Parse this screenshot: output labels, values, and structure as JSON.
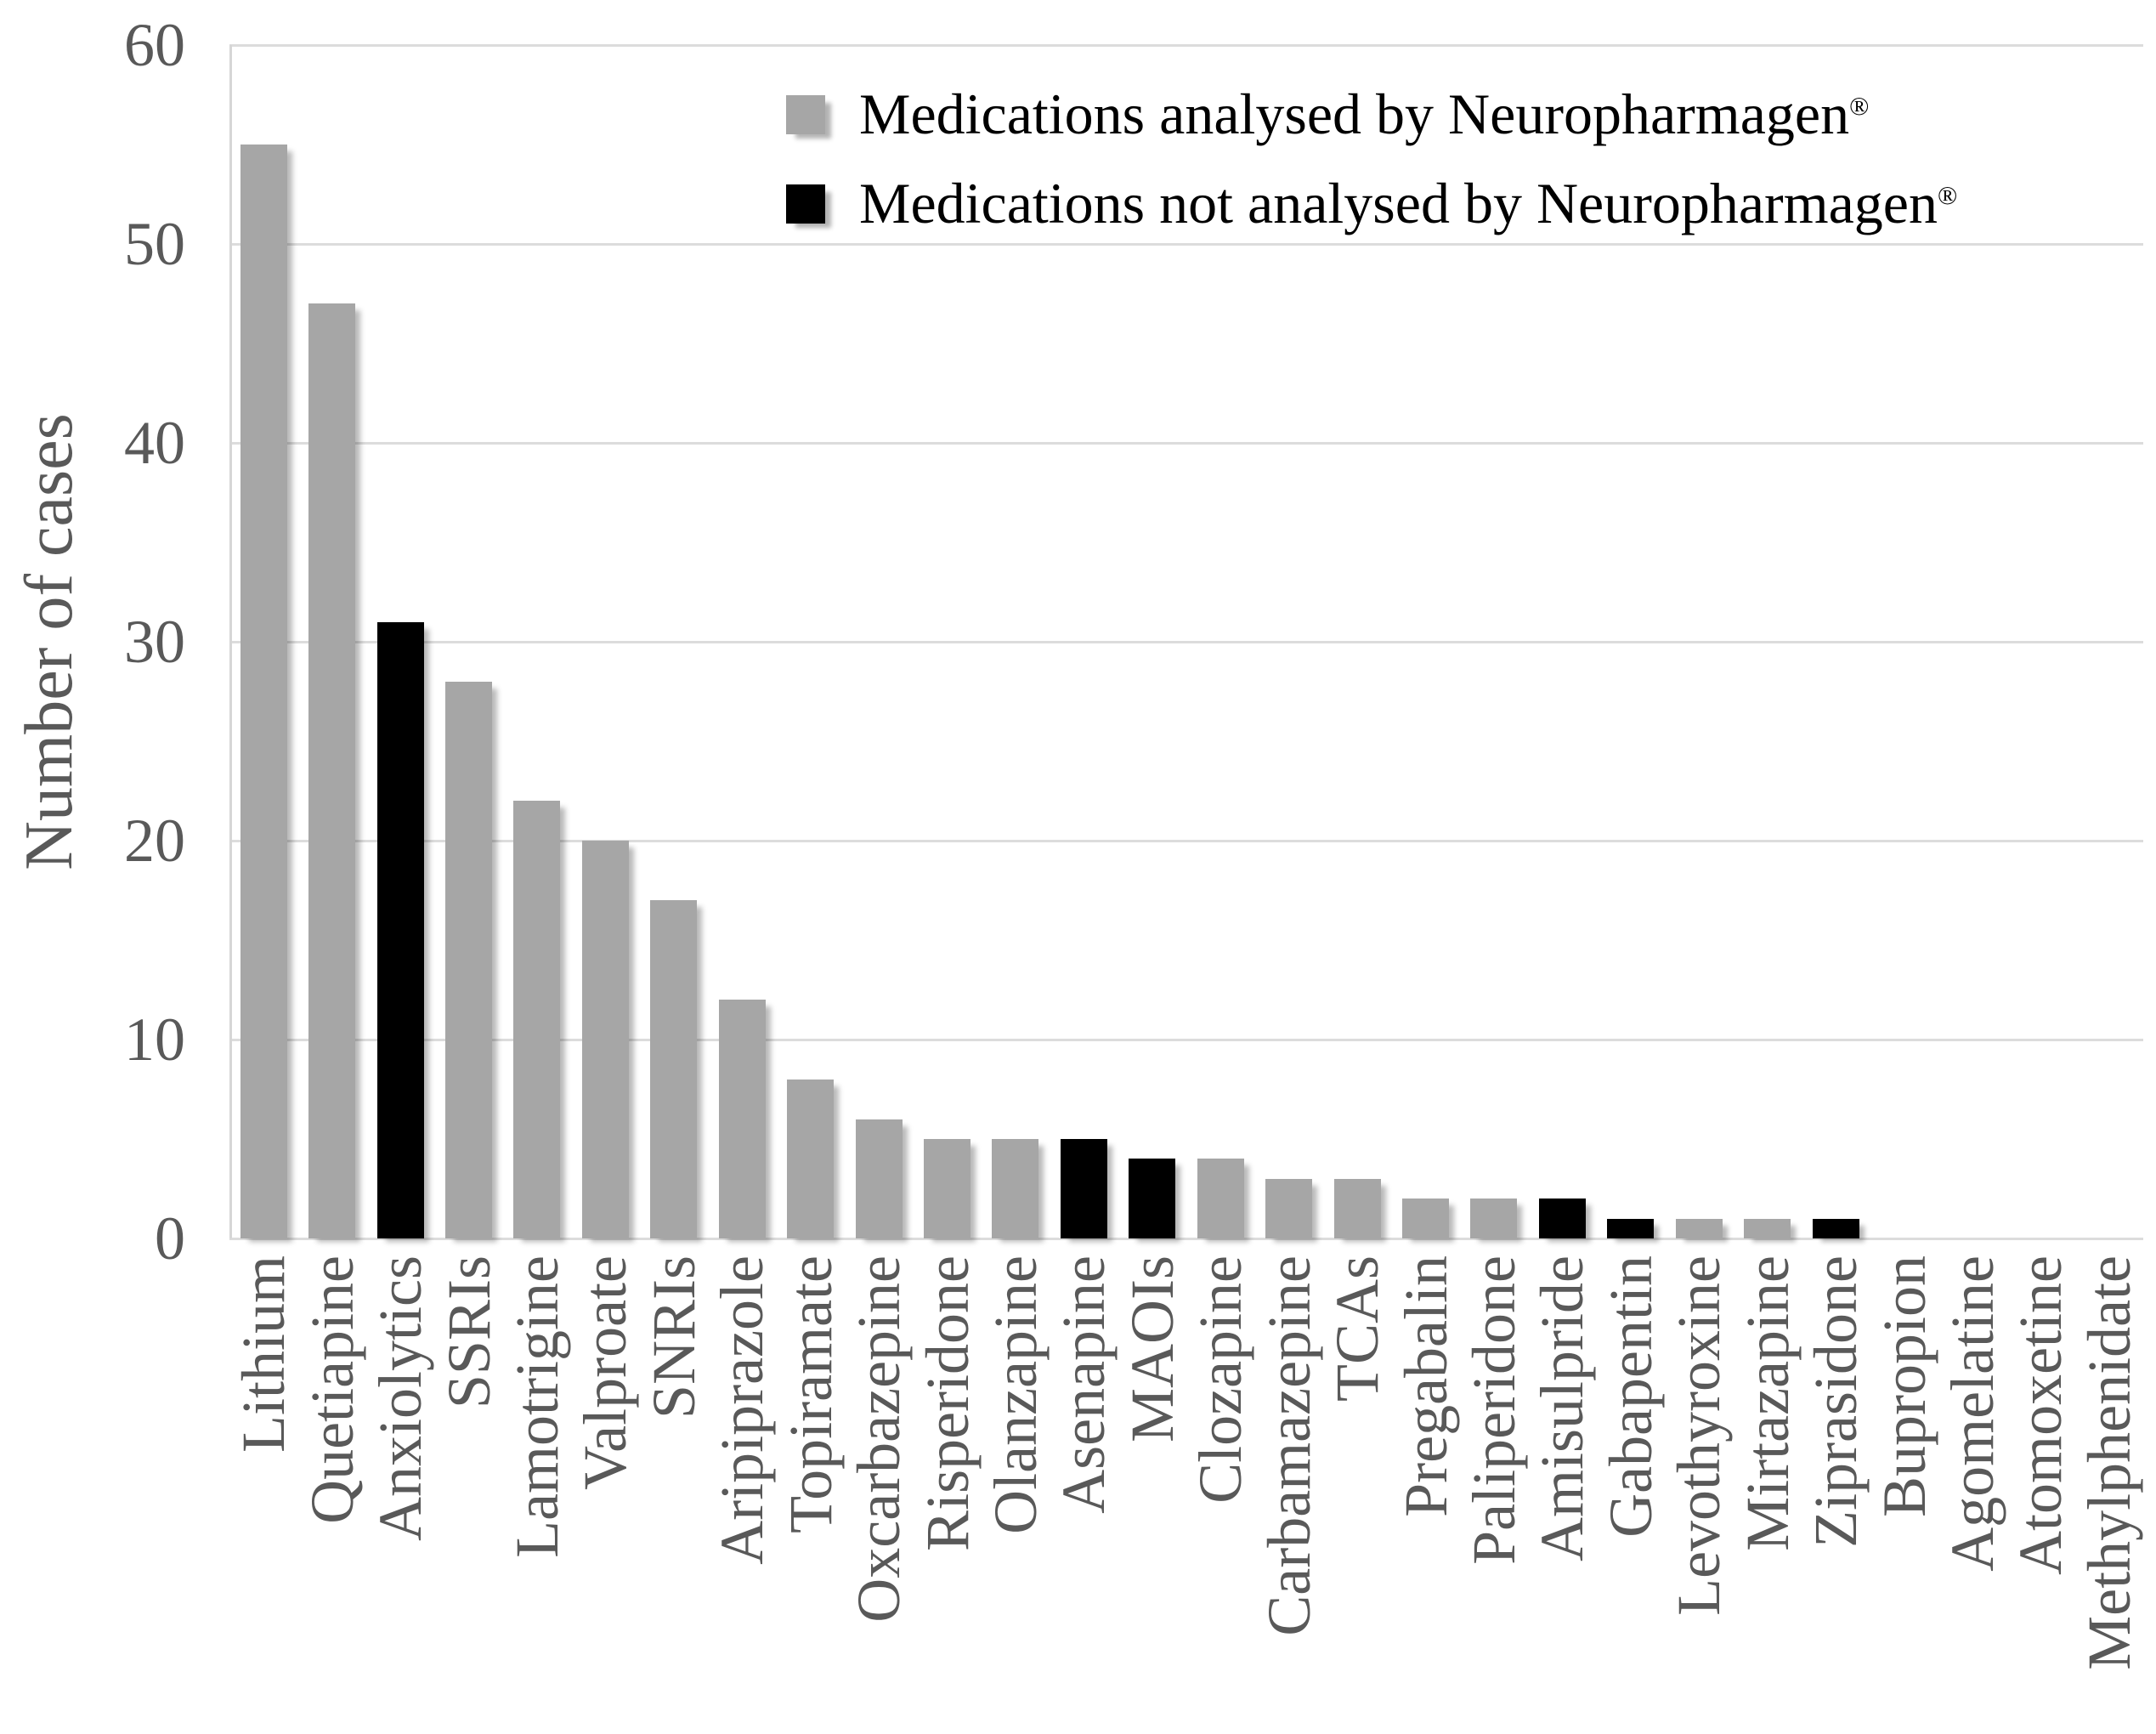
{
  "chart_data": {
    "type": "bar",
    "title": "",
    "ylabel": "Number of cases",
    "xlabel": "",
    "ylim": [
      0,
      60
    ],
    "yticks": [
      0,
      10,
      20,
      30,
      40,
      50,
      60
    ],
    "grid": true,
    "legend_position": "top-center-inside",
    "colors": {
      "analysed": "#a6a6a6",
      "not_analysed": "#000000"
    },
    "legend": [
      {
        "text": "Medications analysed by Neuropharmagen",
        "mark": "®",
        "series": "analysed",
        "color": "#a6a6a6"
      },
      {
        "text": "Medications not analysed by Neuropharmagen",
        "mark": "®",
        "series": "not_analysed",
        "color": "#000000"
      }
    ],
    "categories": [
      "Lithium",
      "Quetiapine",
      "Anxiolytics",
      "SSRIs",
      "Lamotrigine",
      "Valproate",
      "SNRIs",
      "Aripiprazole",
      "Topiramate",
      "Oxcarbazepine",
      "Risperidone",
      "Olanzapine",
      "Asenapine",
      "MAOIs",
      "Clozapine",
      "Carbamazepine",
      "TCAs",
      "Pregabalin",
      "Paliperidone",
      "Amisulpride",
      "Gabapentin",
      "Levothyroxine",
      "Mirtazapine",
      "Ziprasidone",
      "Bupropion",
      "Agomelatine",
      "Atomoxetine",
      "Methylphenidate"
    ],
    "values": [
      55,
      47,
      31,
      28,
      22,
      20,
      17,
      12,
      8,
      6,
      5,
      5,
      5,
      4,
      4,
      3,
      3,
      2,
      2,
      2,
      1,
      1,
      1,
      1,
      0,
      0,
      0,
      0
    ],
    "series_membership": [
      "analysed",
      "analysed",
      "not_analysed",
      "analysed",
      "analysed",
      "analysed",
      "analysed",
      "analysed",
      "analysed",
      "analysed",
      "analysed",
      "analysed",
      "not_analysed",
      "not_analysed",
      "analysed",
      "analysed",
      "analysed",
      "analysed",
      "analysed",
      "not_analysed",
      "not_analysed",
      "analysed",
      "analysed",
      "not_analysed",
      "analysed",
      "analysed",
      "analysed",
      "analysed"
    ]
  }
}
